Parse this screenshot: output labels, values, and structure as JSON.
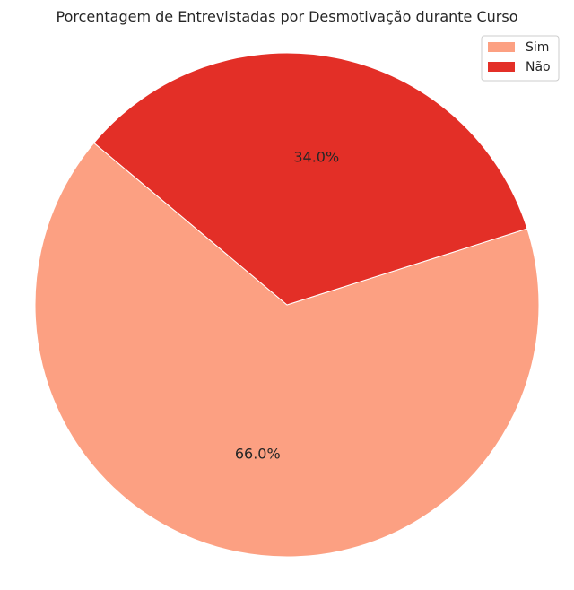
{
  "chart_data": {
    "type": "pie",
    "title": "Porcentagem de Entrevistadas por Desmotivação durante Curso",
    "categories": [
      "Sim",
      "Não"
    ],
    "values": [
      66.0,
      34.0
    ],
    "labels": [
      "66.0%",
      "34.0%"
    ],
    "colors": [
      "#fca082",
      "#e32f27"
    ],
    "start_angle_deg": 140,
    "counterclockwise": true,
    "legend": {
      "placement": "top-right",
      "entries": [
        "Sim",
        "Não"
      ]
    }
  }
}
